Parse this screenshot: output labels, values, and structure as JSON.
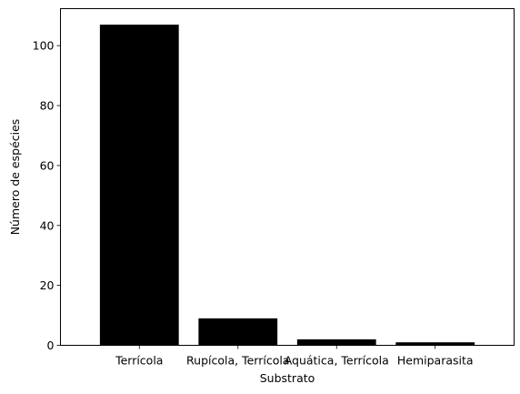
{
  "chart_data": {
    "type": "bar",
    "categories": [
      "Terrícola",
      "Rupícola, Terrícola",
      "Aquática, Terrícola",
      "Hemiparasita"
    ],
    "values": [
      107,
      9,
      2,
      1
    ],
    "title": "",
    "xlabel": "Substrato",
    "ylabel": "Número de espécies",
    "ylim": [
      0,
      112.35
    ],
    "yticks": [
      0,
      20,
      40,
      60,
      80,
      100
    ],
    "bar_color": "#000000",
    "grid": false,
    "legend": "none"
  }
}
